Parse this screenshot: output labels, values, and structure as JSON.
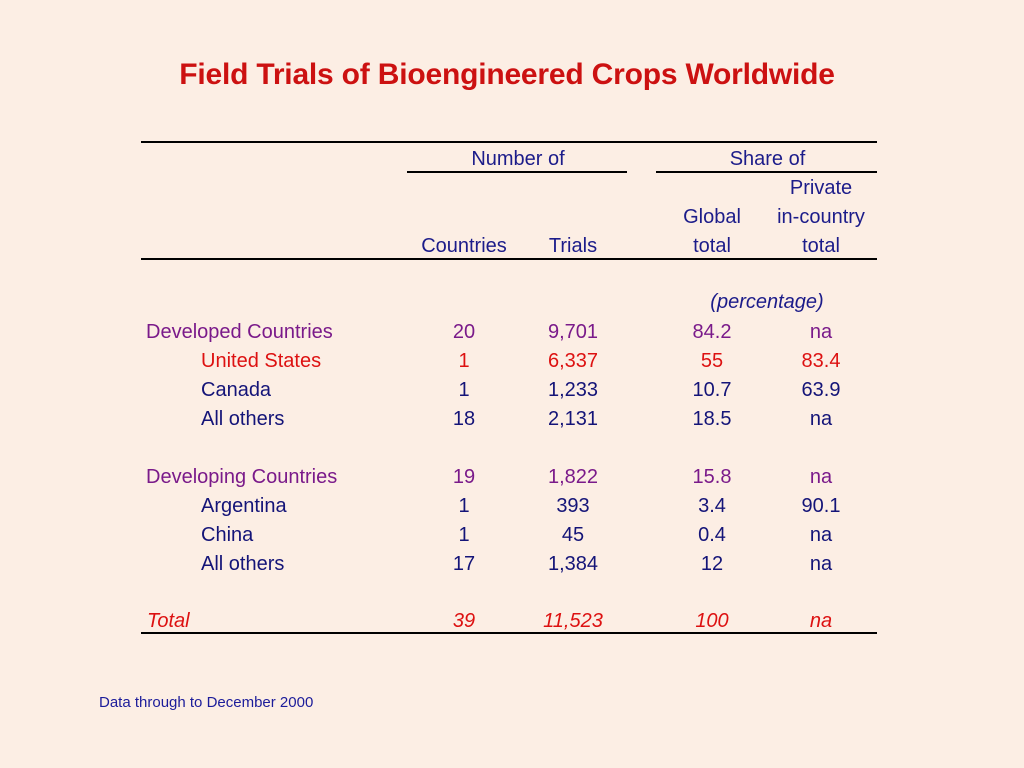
{
  "title": "Field Trials of Bioengineered Crops Worldwide",
  "headers": {
    "group_number_of": "Number of",
    "group_share_of": "Share of",
    "col_countries": "Countries",
    "col_trials": "Trials",
    "col_global_line1": "Global",
    "col_global_line2": "total",
    "col_private_line1": "Private",
    "col_private_line2": "in-country",
    "col_private_line3": "total",
    "unit_note": "(percentage)"
  },
  "rows": [
    {
      "label": "Developed Countries",
      "countries": "20",
      "trials": "9,701",
      "global": "84.2",
      "private": "na",
      "style": "group"
    },
    {
      "label": "United States",
      "countries": "1",
      "trials": "6,337",
      "global": "55",
      "private": "83.4",
      "style": "highlight"
    },
    {
      "label": "Canada",
      "countries": "1",
      "trials": "1,233",
      "global": "10.7",
      "private": "63.9",
      "style": "sub"
    },
    {
      "label": "All others",
      "countries": "18",
      "trials": "2,131",
      "global": "18.5",
      "private": "na",
      "style": "sub"
    },
    {
      "label": "Developing Countries",
      "countries": "19",
      "trials": "1,822",
      "global": "15.8",
      "private": "na",
      "style": "group"
    },
    {
      "label": "Argentina",
      "countries": "1",
      "trials": "393",
      "global": "3.4",
      "private": "90.1",
      "style": "sub"
    },
    {
      "label": "China",
      "countries": "1",
      "trials": "45",
      "global": "0.4",
      "private": "na",
      "style": "sub"
    },
    {
      "label": "All others",
      "countries": "17",
      "trials": "1,384",
      "global": "12",
      "private": "na",
      "style": "sub"
    },
    {
      "label": "Total",
      "countries": "39",
      "trials": "11,523",
      "global": "100",
      "private": "na",
      "style": "total"
    }
  ],
  "footnote": "Data through to December 2000",
  "colors": {
    "background": "#fceee4",
    "title": "#cc1111",
    "group_rows": "#7a1a8a",
    "highlight_row": "#dd1111",
    "sub_rows": "#141478",
    "total_row": "#dd1111"
  }
}
